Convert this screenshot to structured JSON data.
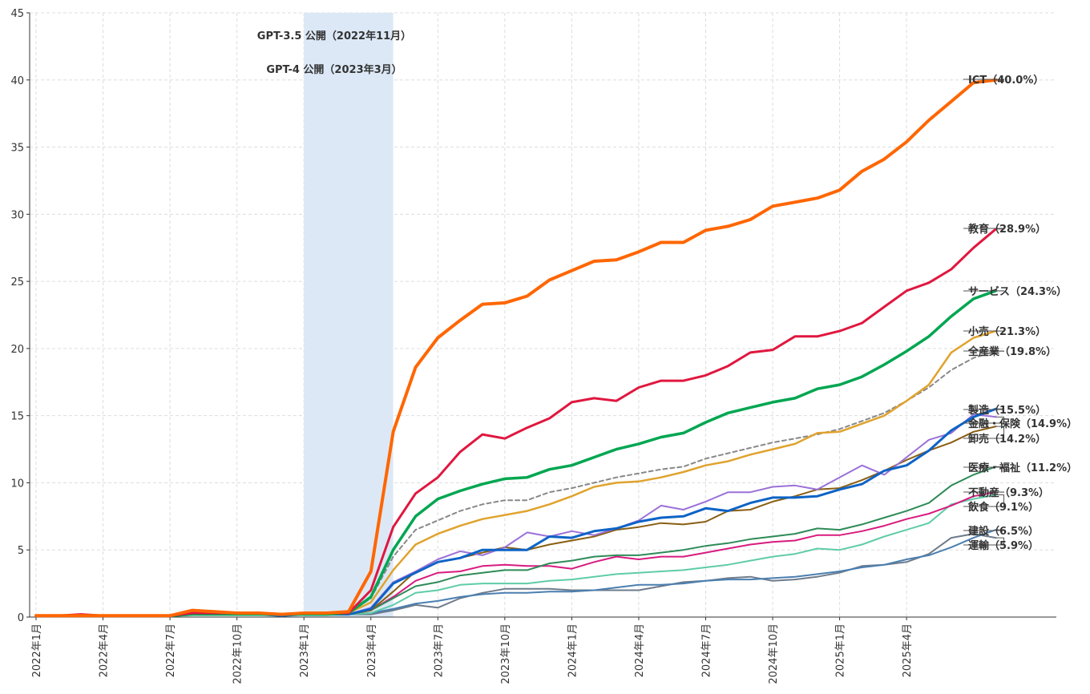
{
  "chart_data": {
    "type": "line",
    "title": "",
    "xlabel": "",
    "ylabel": "",
    "ylim": [
      0,
      45
    ],
    "yticks": [
      0,
      5,
      10,
      15,
      20,
      25,
      30,
      35,
      40,
      45
    ],
    "grid": true,
    "legend": "right-end labels",
    "x_tick_labels": [
      "2022年1月",
      "2022年4月",
      "2022年7月",
      "2022年10月",
      "2023年1月",
      "2023年4月",
      "2023年7月",
      "2023年10月",
      "2024年1月",
      "2024年4月",
      "2024年7月",
      "2024年10月",
      "2025年1月",
      "2025年4月"
    ],
    "x_start": "2022-01",
    "x_end": "2025-10",
    "shaded_region": {
      "from": "2023-01",
      "to": "2023-05",
      "color": "#dce8f6"
    },
    "annotations": [
      "GPT-3.5 公開（2022年11月）",
      "GPT-4 公開（2023年3月）"
    ],
    "series": [
      {
        "name": "ICT（40.0%）",
        "color": "#ff6600",
        "width": 4,
        "dash": false,
        "values": [
          0.1,
          0.1,
          0.1,
          0.1,
          0.1,
          0.1,
          0.1,
          0.5,
          0.4,
          0.3,
          0.3,
          0.2,
          0.3,
          0.3,
          0.4,
          3.4,
          13.8,
          18.6,
          20.8,
          22.1,
          23.3,
          23.4,
          23.9,
          25.1,
          25.8,
          26.5,
          26.6,
          27.2,
          27.9,
          27.9,
          28.8,
          29.1,
          29.6,
          30.6,
          30.9,
          31.2,
          31.8,
          33.2,
          34.1,
          35.4,
          37.0,
          38.4,
          39.8,
          40.0
        ]
      },
      {
        "name": "教育（28.9%）",
        "color": "#e0173f",
        "width": 3,
        "dash": false,
        "values": [
          0.1,
          0.1,
          0.2,
          0.1,
          0.1,
          0.1,
          0.1,
          0.3,
          0.3,
          0.3,
          0.3,
          0.2,
          0.3,
          0.3,
          0.3,
          2.0,
          6.7,
          9.2,
          10.4,
          12.3,
          13.6,
          13.3,
          14.1,
          14.8,
          16.0,
          16.3,
          16.1,
          17.1,
          17.6,
          17.6,
          18.0,
          18.7,
          19.7,
          19.9,
          20.9,
          20.9,
          21.3,
          21.9,
          23.1,
          24.3,
          24.9,
          25.9,
          27.5,
          28.9
        ]
      },
      {
        "name": "サービス（24.3%）",
        "color": "#00a651",
        "width": 3.5,
        "dash": false,
        "values": [
          0.1,
          0.1,
          0.1,
          0.1,
          0.1,
          0.1,
          0.1,
          0.2,
          0.2,
          0.2,
          0.2,
          0.2,
          0.2,
          0.2,
          0.3,
          1.5,
          5.0,
          7.5,
          8.8,
          9.4,
          9.9,
          10.3,
          10.4,
          11.0,
          11.3,
          11.9,
          12.5,
          12.9,
          13.4,
          13.7,
          14.5,
          15.2,
          15.6,
          16.0,
          16.3,
          17.0,
          17.3,
          17.9,
          18.8,
          19.8,
          20.9,
          22.4,
          23.7,
          24.3
        ]
      },
      {
        "name": "小売（21.3%）",
        "color": "#e0a32e",
        "width": 2.5,
        "dash": false,
        "values": [
          0.1,
          0.1,
          0.1,
          0.1,
          0.1,
          0.1,
          0.1,
          0.2,
          0.2,
          0.2,
          0.2,
          0.2,
          0.2,
          0.2,
          0.3,
          1.1,
          3.5,
          5.4,
          6.2,
          6.8,
          7.3,
          7.6,
          7.9,
          8.4,
          9.0,
          9.7,
          10.0,
          10.1,
          10.4,
          10.8,
          11.3,
          11.6,
          12.1,
          12.5,
          12.9,
          13.7,
          13.8,
          14.4,
          15.0,
          16.1,
          17.3,
          19.7,
          20.8,
          21.3
        ]
      },
      {
        "name": "全産業（19.8%）",
        "color": "#888888",
        "width": 2,
        "dash": true,
        "values": [
          0.1,
          0.1,
          0.1,
          0.1,
          0.1,
          0.1,
          0.1,
          0.2,
          0.2,
          0.2,
          0.2,
          0.2,
          0.2,
          0.2,
          0.3,
          1.4,
          4.5,
          6.5,
          7.2,
          7.9,
          8.4,
          8.7,
          8.7,
          9.3,
          9.6,
          10.0,
          10.4,
          10.7,
          11.0,
          11.2,
          11.8,
          12.2,
          12.6,
          13.0,
          13.3,
          13.6,
          14.0,
          14.6,
          15.2,
          16.1,
          17.1,
          18.4,
          19.3,
          19.8
        ]
      },
      {
        "name": "製造（15.5%）",
        "color": "#0d63c6",
        "width": 3,
        "dash": false,
        "values": [
          0.1,
          0.1,
          0.1,
          0.1,
          0.1,
          0.1,
          0.1,
          0.2,
          0.2,
          0.2,
          0.2,
          0.1,
          0.2,
          0.2,
          0.2,
          0.6,
          2.5,
          3.3,
          4.1,
          4.4,
          5.0,
          5.0,
          5.0,
          6.0,
          5.9,
          6.4,
          6.6,
          7.1,
          7.4,
          7.5,
          8.1,
          7.9,
          8.5,
          8.9,
          8.9,
          9.0,
          9.5,
          9.9,
          10.9,
          11.3,
          12.4,
          13.9,
          14.9,
          15.5
        ]
      },
      {
        "name": "金融・保険（14.9%）",
        "color": "#9b71d8",
        "width": 2,
        "dash": false,
        "values": [
          0.1,
          0.1,
          0.1,
          0.1,
          0.1,
          0.1,
          0.1,
          0.2,
          0.2,
          0.2,
          0.2,
          0.1,
          0.2,
          0.2,
          0.2,
          0.7,
          2.6,
          3.4,
          4.3,
          4.9,
          4.6,
          5.2,
          6.3,
          6.0,
          6.4,
          6.1,
          6.6,
          7.2,
          8.3,
          8.0,
          8.6,
          9.3,
          9.3,
          9.7,
          9.8,
          9.5,
          10.4,
          11.3,
          10.6,
          11.9,
          13.2,
          13.7,
          15.1,
          14.9
        ]
      },
      {
        "name": "卸売（14.2%）",
        "color": "#8a5e12",
        "width": 2,
        "dash": false,
        "values": [
          0.1,
          0.1,
          0.1,
          0.1,
          0.1,
          0.1,
          0.1,
          0.2,
          0.2,
          0.2,
          0.2,
          0.1,
          0.2,
          0.2,
          0.2,
          0.5,
          1.9,
          3.4,
          4.1,
          4.4,
          4.8,
          5.2,
          5.0,
          5.4,
          5.7,
          6.0,
          6.5,
          6.7,
          7.0,
          6.9,
          7.1,
          7.9,
          8.0,
          8.6,
          9.0,
          9.5,
          9.6,
          10.2,
          10.9,
          11.7,
          12.4,
          13.0,
          13.8,
          14.2
        ]
      },
      {
        "name": "医療・福祉（11.2%）",
        "color": "#2e8b57",
        "width": 2,
        "dash": false,
        "values": [
          0.1,
          0.1,
          0.1,
          0.1,
          0.1,
          0.1,
          0.1,
          0.2,
          0.2,
          0.2,
          0.2,
          0.1,
          0.2,
          0.2,
          0.2,
          0.5,
          1.4,
          2.3,
          2.6,
          3.1,
          3.3,
          3.5,
          3.5,
          4.0,
          4.2,
          4.5,
          4.6,
          4.6,
          4.8,
          5.0,
          5.3,
          5.5,
          5.8,
          6.0,
          6.2,
          6.6,
          6.5,
          6.9,
          7.4,
          7.9,
          8.5,
          9.8,
          10.6,
          11.2
        ]
      },
      {
        "name": "不動産（9.3%）",
        "color": "#d81b7f",
        "width": 2,
        "dash": false,
        "values": [
          0.1,
          0.1,
          0.1,
          0.1,
          0.1,
          0.1,
          0.1,
          0.2,
          0.2,
          0.2,
          0.2,
          0.1,
          0.2,
          0.2,
          0.2,
          0.5,
          1.5,
          2.7,
          3.3,
          3.4,
          3.8,
          3.9,
          3.8,
          3.8,
          3.6,
          4.1,
          4.5,
          4.3,
          4.5,
          4.5,
          4.8,
          5.1,
          5.4,
          5.6,
          5.7,
          6.1,
          6.1,
          6.4,
          6.8,
          7.3,
          7.7,
          8.3,
          9.0,
          9.3
        ]
      },
      {
        "name": "飲食（9.1%）",
        "color": "#5fcca8",
        "width": 2,
        "dash": false,
        "values": [
          0.1,
          0.1,
          0.1,
          0.1,
          0.1,
          0.1,
          0.1,
          0.2,
          0.2,
          0.2,
          0.2,
          0.1,
          0.2,
          0.2,
          0.2,
          0.3,
          0.9,
          1.8,
          2.0,
          2.4,
          2.5,
          2.5,
          2.5,
          2.7,
          2.8,
          3.0,
          3.2,
          3.3,
          3.4,
          3.5,
          3.7,
          3.9,
          4.2,
          4.5,
          4.7,
          5.1,
          5.0,
          5.4,
          6.0,
          6.5,
          7.0,
          8.4,
          8.8,
          9.1
        ]
      },
      {
        "name": "建設（6.5%）",
        "color": "#4a7fb0",
        "width": 2,
        "dash": false,
        "values": [
          0.1,
          0.1,
          0.1,
          0.1,
          0.1,
          0.1,
          0.1,
          0.2,
          0.2,
          0.2,
          0.2,
          0.1,
          0.2,
          0.2,
          0.2,
          0.3,
          0.6,
          1.0,
          1.2,
          1.5,
          1.7,
          1.8,
          1.8,
          1.9,
          1.9,
          2.0,
          2.2,
          2.4,
          2.4,
          2.5,
          2.7,
          2.8,
          2.8,
          2.9,
          3.0,
          3.2,
          3.4,
          3.7,
          3.9,
          4.3,
          4.6,
          5.2,
          5.9,
          6.5
        ]
      },
      {
        "name": "運輸（5.9%）",
        "color": "#6e7b8b",
        "width": 2,
        "dash": false,
        "values": [
          0.1,
          0.1,
          0.1,
          0.1,
          0.1,
          0.1,
          0.1,
          0.2,
          0.2,
          0.2,
          0.2,
          0.1,
          0.2,
          0.2,
          0.2,
          0.2,
          0.5,
          0.9,
          0.7,
          1.4,
          1.8,
          2.1,
          2.1,
          2.1,
          2.0,
          2.0,
          2.0,
          2.0,
          2.3,
          2.6,
          2.7,
          2.9,
          3.0,
          2.7,
          2.8,
          3.0,
          3.3,
          3.8,
          3.9,
          4.1,
          4.7,
          5.9,
          6.2,
          5.9
        ]
      }
    ]
  }
}
